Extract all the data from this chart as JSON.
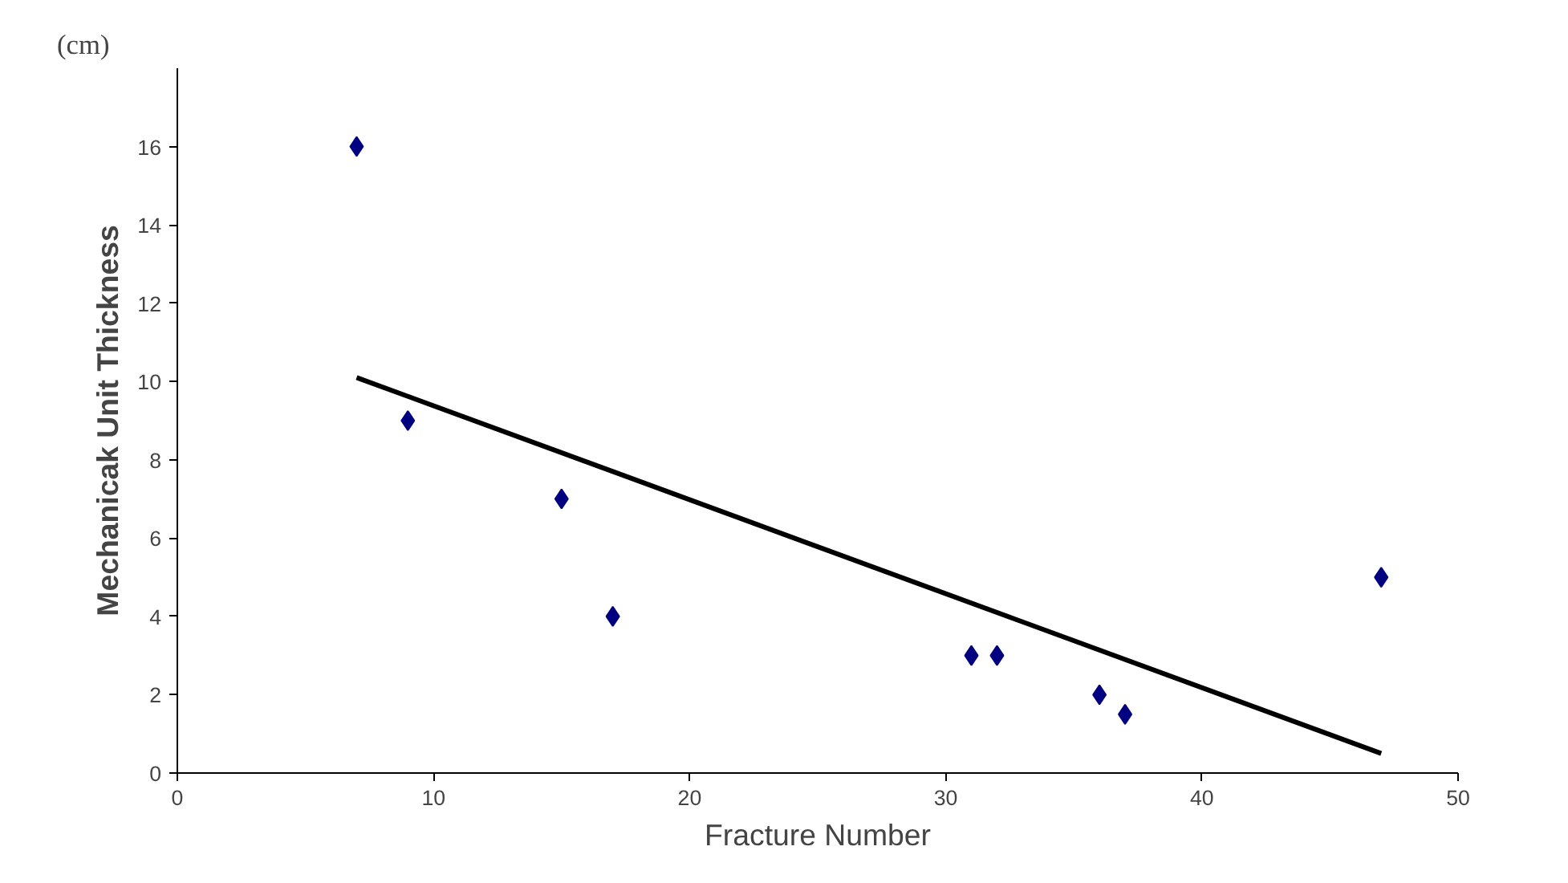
{
  "chart_data": {
    "type": "scatter",
    "xlabel": "Fracture Number",
    "ylabel": "Mechanicak Unit Thickness",
    "annotations": [
      "(cm)"
    ],
    "xlim": [
      0,
      50
    ],
    "xticks": [
      0,
      10,
      20,
      30,
      40,
      50
    ],
    "ylim": [
      0,
      18
    ],
    "yticks": [
      0,
      2,
      4,
      6,
      8,
      10,
      12,
      14,
      16
    ],
    "grid": false,
    "series": [
      {
        "marker": "diamond",
        "color": "#000080",
        "x": [
          7,
          9,
          15,
          17,
          31,
          32,
          36,
          37,
          47
        ],
        "values": [
          16,
          9,
          7,
          4,
          3,
          3,
          2,
          1.5,
          5
        ]
      },
      {
        "type": "line",
        "color": "#000000",
        "x": [
          7,
          47
        ],
        "values": [
          10.1,
          0.5
        ],
        "line_style": "solid"
      }
    ]
  }
}
